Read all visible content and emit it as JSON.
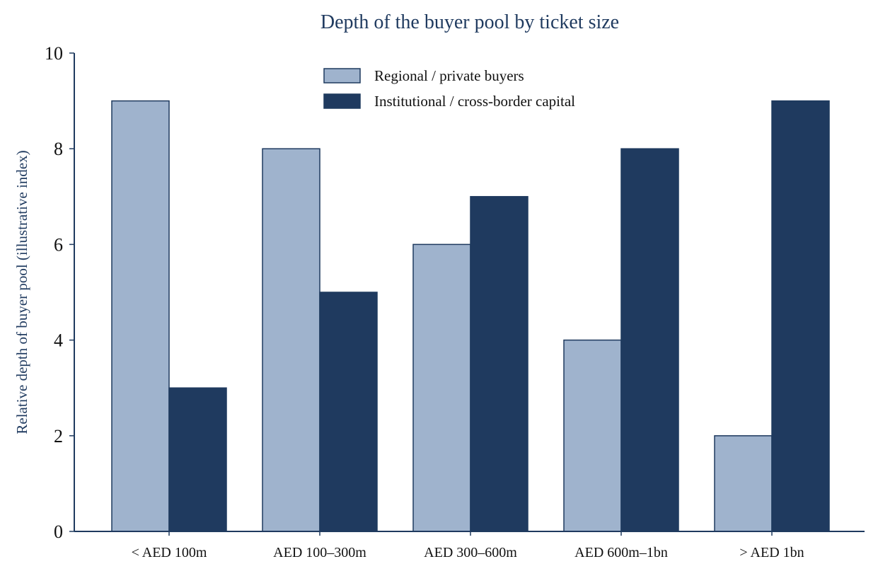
{
  "chart_data": {
    "type": "bar",
    "title": "Depth of the buyer pool by ticket size",
    "xlabel": "",
    "ylabel": "Relative depth of buyer pool (illustrative index)",
    "categories": [
      "< AED 100m",
      "AED 100–300m",
      "AED 300–600m",
      "AED 600m–1bn",
      "> AED 1bn"
    ],
    "series": [
      {
        "name": "Regional / private buyers",
        "values": [
          9,
          8,
          6,
          4,
          2
        ],
        "color": "#9fb3cd",
        "stroke": "#1f3a5f"
      },
      {
        "name": "Institutional / cross-border capital",
        "values": [
          3,
          5,
          7,
          8,
          9
        ],
        "color": "#1f3a5f",
        "stroke": "#1f3a5f"
      }
    ],
    "ylim": [
      0,
      10
    ],
    "yticks": [
      0,
      2,
      4,
      6,
      8,
      10
    ],
    "grid": false,
    "legend_position": "top-center"
  }
}
